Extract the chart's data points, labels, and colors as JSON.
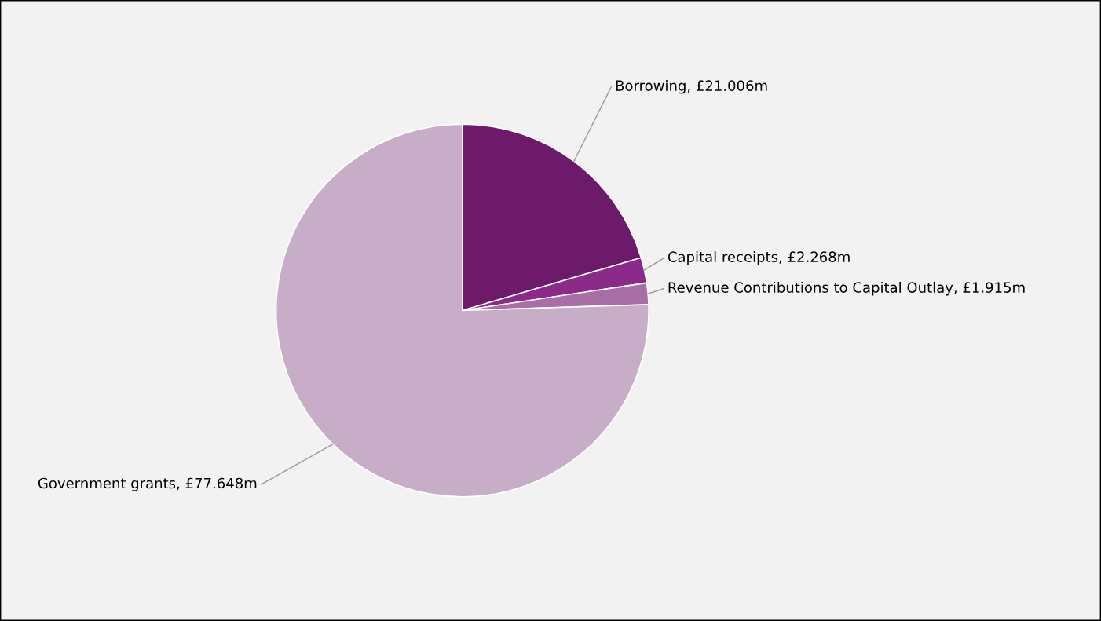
{
  "chart_data": {
    "type": "pie",
    "categories": [
      "Borrowing",
      "Capital receipts",
      "Revenue Contributions to Capital Outlay",
      "Government grants"
    ],
    "values": [
      21.006,
      2.268,
      1.915,
      77.648
    ],
    "value_labels": [
      "£21.006m",
      "£2.268m",
      "£1.915m",
      "£77.648m"
    ],
    "colors": [
      "#6d1a6a",
      "#8b2a88",
      "#a86ea5",
      "#c8adc8"
    ],
    "legend": false
  }
}
